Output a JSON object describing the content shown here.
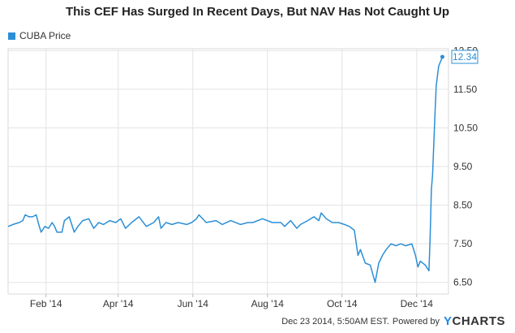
{
  "chart_data": {
    "type": "line",
    "title": "This CEF Has Surged In Recent Days, But NAV Has Not Caught Up",
    "legend_position": "top-left",
    "grid": true,
    "ylim": [
      6.2,
      12.55
    ],
    "xlim": [
      "2014-01-01",
      "2014-12-27"
    ],
    "x_ticks": [
      {
        "label": "Feb '14",
        "date": "2014-02-01"
      },
      {
        "label": "Apr '14",
        "date": "2014-04-01"
      },
      {
        "label": "Jun '14",
        "date": "2014-06-01"
      },
      {
        "label": "Aug '14",
        "date": "2014-08-01"
      },
      {
        "label": "Oct '14",
        "date": "2014-10-01"
      },
      {
        "label": "Dec '14",
        "date": "2014-12-01"
      }
    ],
    "y_ticks": [
      {
        "label": "6.50",
        "value": 6.5
      },
      {
        "label": "7.50",
        "value": 7.5
      },
      {
        "label": "8.50",
        "value": 8.5
      },
      {
        "label": "9.50",
        "value": 9.5
      },
      {
        "label": "10.50",
        "value": 10.5
      },
      {
        "label": "11.50",
        "value": 11.5
      },
      {
        "label": "12.50",
        "value": 12.5
      }
    ],
    "series": [
      {
        "name": "CUBA Price",
        "color": "#2b8fd6",
        "last_value_label": "12.34",
        "points": [
          [
            "2014-01-01",
            7.95
          ],
          [
            "2014-01-05",
            8.0
          ],
          [
            "2014-01-10",
            8.05
          ],
          [
            "2014-01-13",
            8.1
          ],
          [
            "2014-01-15",
            8.25
          ],
          [
            "2014-01-18",
            8.2
          ],
          [
            "2014-01-21",
            8.2
          ],
          [
            "2014-01-24",
            8.25
          ],
          [
            "2014-01-26",
            8.0
          ],
          [
            "2014-01-28",
            7.8
          ],
          [
            "2014-01-31",
            7.95
          ],
          [
            "2014-02-03",
            7.9
          ],
          [
            "2014-02-06",
            8.05
          ],
          [
            "2014-02-08",
            7.95
          ],
          [
            "2014-02-10",
            7.8
          ],
          [
            "2014-02-14",
            7.8
          ],
          [
            "2014-02-16",
            8.1
          ],
          [
            "2014-02-20",
            8.2
          ],
          [
            "2014-02-24",
            7.8
          ],
          [
            "2014-02-27",
            7.95
          ],
          [
            "2014-03-03",
            8.1
          ],
          [
            "2014-03-08",
            8.15
          ],
          [
            "2014-03-12",
            7.9
          ],
          [
            "2014-03-16",
            8.05
          ],
          [
            "2014-03-20",
            8.0
          ],
          [
            "2014-03-25",
            8.1
          ],
          [
            "2014-03-30",
            8.05
          ],
          [
            "2014-04-03",
            8.15
          ],
          [
            "2014-04-07",
            7.9
          ],
          [
            "2014-04-12",
            8.05
          ],
          [
            "2014-04-18",
            8.2
          ],
          [
            "2014-04-24",
            7.95
          ],
          [
            "2014-04-30",
            8.05
          ],
          [
            "2014-05-04",
            8.2
          ],
          [
            "2014-05-06",
            7.9
          ],
          [
            "2014-05-10",
            8.05
          ],
          [
            "2014-05-15",
            8.0
          ],
          [
            "2014-05-20",
            8.05
          ],
          [
            "2014-05-27",
            8.0
          ],
          [
            "2014-05-31",
            8.05
          ],
          [
            "2014-06-04",
            8.15
          ],
          [
            "2014-06-06",
            8.25
          ],
          [
            "2014-06-12",
            8.05
          ],
          [
            "2014-06-20",
            8.1
          ],
          [
            "2014-06-25",
            8.0
          ],
          [
            "2014-07-02",
            8.1
          ],
          [
            "2014-07-10",
            8.0
          ],
          [
            "2014-07-16",
            8.05
          ],
          [
            "2014-07-20",
            8.05
          ],
          [
            "2014-07-28",
            8.15
          ],
          [
            "2014-08-05",
            8.05
          ],
          [
            "2014-08-12",
            8.05
          ],
          [
            "2014-08-15",
            7.95
          ],
          [
            "2014-08-20",
            8.1
          ],
          [
            "2014-08-25",
            7.9
          ],
          [
            "2014-08-28",
            8.0
          ],
          [
            "2014-09-03",
            8.1
          ],
          [
            "2014-09-08",
            8.2
          ],
          [
            "2014-09-12",
            8.1
          ],
          [
            "2014-09-14",
            8.3
          ],
          [
            "2014-09-18",
            8.15
          ],
          [
            "2014-09-23",
            8.05
          ],
          [
            "2014-09-28",
            8.05
          ],
          [
            "2014-10-03",
            8.0
          ],
          [
            "2014-10-07",
            7.95
          ],
          [
            "2014-10-11",
            7.85
          ],
          [
            "2014-10-14",
            7.2
          ],
          [
            "2014-10-16",
            7.35
          ],
          [
            "2014-10-20",
            7.0
          ],
          [
            "2014-10-24",
            6.95
          ],
          [
            "2014-10-28",
            6.5
          ],
          [
            "2014-10-31",
            7.0
          ],
          [
            "2014-11-03",
            7.2
          ],
          [
            "2014-11-06",
            7.35
          ],
          [
            "2014-11-10",
            7.5
          ],
          [
            "2014-11-14",
            7.45
          ],
          [
            "2014-11-18",
            7.5
          ],
          [
            "2014-11-22",
            7.45
          ],
          [
            "2014-11-27",
            7.5
          ],
          [
            "2014-11-30",
            7.2
          ],
          [
            "2014-12-02",
            6.9
          ],
          [
            "2014-12-04",
            7.05
          ],
          [
            "2014-12-08",
            6.95
          ],
          [
            "2014-12-11",
            6.8
          ],
          [
            "2014-12-12",
            7.7
          ],
          [
            "2014-12-13",
            8.9
          ],
          [
            "2014-12-14",
            9.3
          ],
          [
            "2014-12-16",
            10.9
          ],
          [
            "2014-12-17",
            11.6
          ],
          [
            "2014-12-19",
            12.1
          ],
          [
            "2014-12-22",
            12.34
          ]
        ]
      }
    ]
  },
  "footer": {
    "timestamp": "Dec 23 2014, 5:50AM EST.",
    "powered_by": "Powered by",
    "brand_mark": "Y",
    "brand_rest": "CHARTS"
  }
}
